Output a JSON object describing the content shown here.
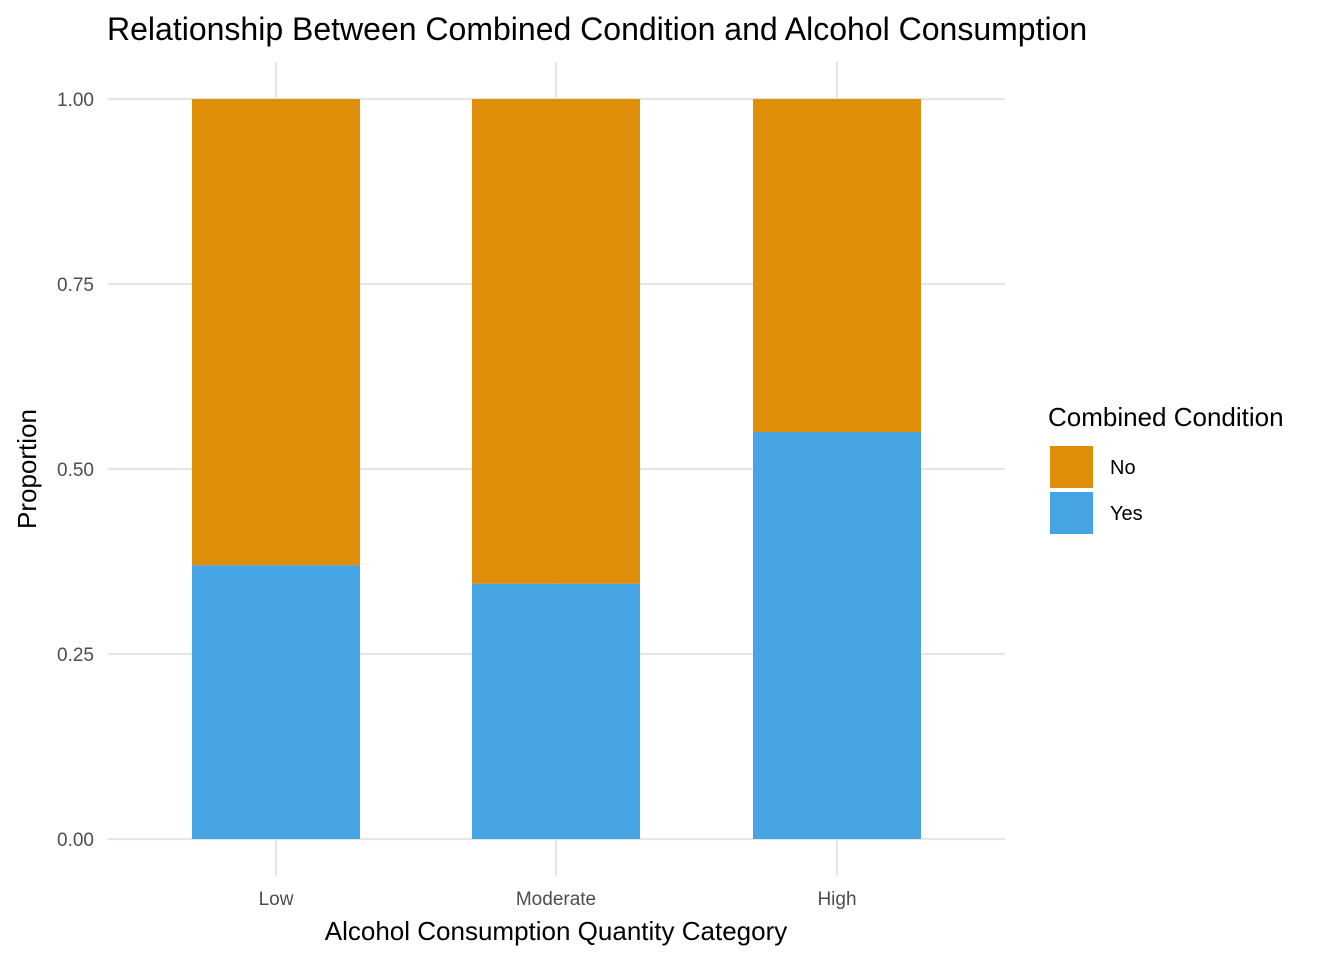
{
  "chart_data": {
    "type": "bar",
    "stacked": true,
    "title": "Relationship Between Combined Condition and Alcohol Consumption",
    "xlabel": "Alcohol Consumption Quantity Category",
    "ylabel": "Proportion",
    "categories": [
      "Low",
      "Moderate",
      "High"
    ],
    "ylim": [
      0,
      1
    ],
    "yticks": [
      0.0,
      0.25,
      0.5,
      0.75,
      1.0
    ],
    "ytick_labels": [
      "0.00",
      "0.25",
      "0.50",
      "0.75",
      "1.00"
    ],
    "grid": true,
    "series": [
      {
        "name": "Yes",
        "values": [
          0.37,
          0.345,
          0.55
        ],
        "color": "#47A4E2"
      },
      {
        "name": "No",
        "values": [
          0.63,
          0.655,
          0.45
        ],
        "color": "#DE8E09"
      }
    ],
    "legend": {
      "title": "Combined Condition",
      "placement": "right",
      "entries": [
        {
          "label": "No",
          "color": "#DE8E09"
        },
        {
          "label": "Yes",
          "color": "#47A4E2"
        }
      ]
    }
  }
}
